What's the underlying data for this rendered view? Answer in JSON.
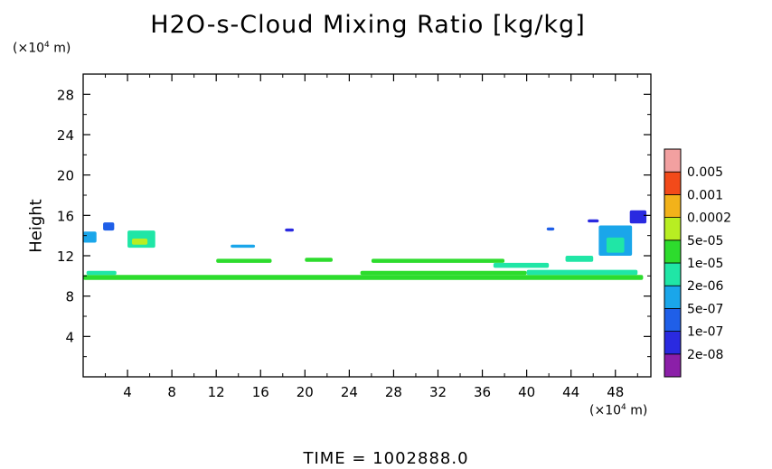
{
  "chart_data": {
    "type": "heatmap",
    "title": "H2O-s-Cloud Mixing Ratio [kg/kg]",
    "ylabel": "Height",
    "x_unit": {
      "prefix": "(×10",
      "exp": "4",
      "suffix": " m)"
    },
    "y_unit": {
      "prefix": "(×10",
      "exp": "4",
      "suffix": " m)"
    },
    "x_ticks": [
      "4",
      "8",
      "12",
      "16",
      "20",
      "24",
      "28",
      "32",
      "36",
      "40",
      "44",
      "48"
    ],
    "y_ticks": [
      "4",
      "8",
      "12",
      "16",
      "20",
      "24",
      "28"
    ],
    "xlim": [
      0,
      51.2
    ],
    "ylim": [
      0,
      30
    ],
    "colorbar": {
      "levels": [
        "2e-08",
        "1e-07",
        "5e-07",
        "2e-06",
        "1e-05",
        "5e-05",
        "0.0002",
        "0.001",
        "0.005"
      ],
      "colors": [
        "#8b1fa8",
        "#2a2ae0",
        "#1f5fe8",
        "#1aa6ea",
        "#20e6a6",
        "#2ddc2d",
        "#b8ee22",
        "#f2b21a",
        "#f24a1a",
        "#f2a0a0"
      ]
    },
    "cloud_features": [
      {
        "x0": 0.0,
        "x1": 50.5,
        "y0": 9.6,
        "y1": 10.1,
        "level": 5
      },
      {
        "x0": 0.3,
        "x1": 3.0,
        "y0": 10.1,
        "y1": 10.5,
        "level": 4
      },
      {
        "x0": 25.0,
        "x1": 40.0,
        "y0": 10.1,
        "y1": 10.5,
        "level": 5
      },
      {
        "x0": 40.0,
        "x1": 50.0,
        "y0": 10.1,
        "y1": 10.6,
        "level": 4
      },
      {
        "x0": 26.0,
        "x1": 38.0,
        "y0": 11.3,
        "y1": 11.7,
        "level": 5
      },
      {
        "x0": 12.0,
        "x1": 17.0,
        "y0": 11.3,
        "y1": 11.7,
        "level": 5
      },
      {
        "x0": 20.0,
        "x1": 22.5,
        "y0": 11.4,
        "y1": 11.8,
        "level": 5
      },
      {
        "x0": 43.5,
        "x1": 46.0,
        "y0": 11.4,
        "y1": 12.0,
        "level": 4
      },
      {
        "x0": 37.0,
        "x1": 42.0,
        "y0": 10.8,
        "y1": 11.3,
        "level": 4
      },
      {
        "x0": 4.0,
        "x1": 6.5,
        "y0": 12.8,
        "y1": 14.5,
        "level": 4
      },
      {
        "x0": 4.4,
        "x1": 5.8,
        "y0": 13.1,
        "y1": 13.7,
        "level": 6
      },
      {
        "x0": 1.8,
        "x1": 2.8,
        "y0": 14.5,
        "y1": 15.3,
        "level": 2
      },
      {
        "x0": 0.0,
        "x1": 1.2,
        "y0": 13.3,
        "y1": 14.4,
        "level": 3
      },
      {
        "x0": 13.3,
        "x1": 15.5,
        "y0": 12.8,
        "y1": 13.1,
        "level": 3
      },
      {
        "x0": 18.2,
        "x1": 19.0,
        "y0": 14.4,
        "y1": 14.7,
        "level": 1
      },
      {
        "x0": 46.5,
        "x1": 49.5,
        "y0": 12.0,
        "y1": 15.0,
        "level": 3
      },
      {
        "x0": 47.2,
        "x1": 48.8,
        "y0": 12.3,
        "y1": 13.8,
        "level": 4
      },
      {
        "x0": 49.3,
        "x1": 50.8,
        "y0": 15.2,
        "y1": 16.5,
        "level": 1
      },
      {
        "x0": 45.5,
        "x1": 46.5,
        "y0": 15.3,
        "y1": 15.6,
        "level": 1
      },
      {
        "x0": 41.8,
        "x1": 42.5,
        "y0": 14.5,
        "y1": 14.8,
        "level": 2
      }
    ]
  },
  "time_label": "TIME = 1002888.0"
}
